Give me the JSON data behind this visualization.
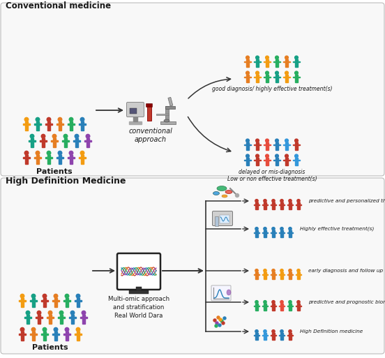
{
  "title_top": "Conventional medicine",
  "title_bottom": "High Definition Medicine",
  "conventional_label": "conventional\napproach",
  "patients_label": "Patients",
  "multiomics_label": "Multi-omic approach\nand stratification\nReal World Dara",
  "outcome_good": "good diagnosis/ highly effective treatment(s)",
  "outcome_bad": "delayed or mis-diagnosis\nLow or non effective treatment(s)",
  "outcome1": "predictive and personalized therapy",
  "outcome2": "Highly effective treatment(s)",
  "outcome3": "early diagnosis and follow up",
  "outcome4": "predictive and prognostic biomarkers",
  "outcome5": "High Definition medicine",
  "bg_color": "#ffffff",
  "text_color": "#1a1a1a",
  "crowd_colors": [
    "#c0392b",
    "#e67e22",
    "#27ae60",
    "#2980b9",
    "#8e44ad",
    "#f39c12",
    "#16a085"
  ],
  "good_outcome_colors": [
    "#e67e22",
    "#f39c12",
    "#27ae60",
    "#16a085",
    "#f39c12",
    "#27ae60",
    "#e67e22",
    "#16a085",
    "#f39c12",
    "#27ae60",
    "#e67e22",
    "#16a085"
  ],
  "bad_outcome_colors": [
    "#2980b9",
    "#c0392b",
    "#e74c3c",
    "#2980b9",
    "#c0392b",
    "#3498db",
    "#2980b9",
    "#c0392b",
    "#e74c3c",
    "#2980b9",
    "#3498db",
    "#c0392b"
  ],
  "oc1_colors": [
    "#c0392b",
    "#c0392b",
    "#c0392b",
    "#c0392b",
    "#c0392b",
    "#c0392b"
  ],
  "oc2_colors": [
    "#2980b9",
    "#2980b9",
    "#2980b9",
    "#2980b9",
    "#2980b9"
  ],
  "oc3_colors": [
    "#e67e22",
    "#f39c12",
    "#e67e22",
    "#f39c12",
    "#e67e22",
    "#f39c12"
  ],
  "oc4_colors": [
    "#27ae60",
    "#27ae60",
    "#c0392b",
    "#e74c3c",
    "#27ae60",
    "#c0392b"
  ],
  "oc5_colors": [
    "#2980b9",
    "#3498db",
    "#c0392b",
    "#2980b9",
    "#c0392b"
  ]
}
